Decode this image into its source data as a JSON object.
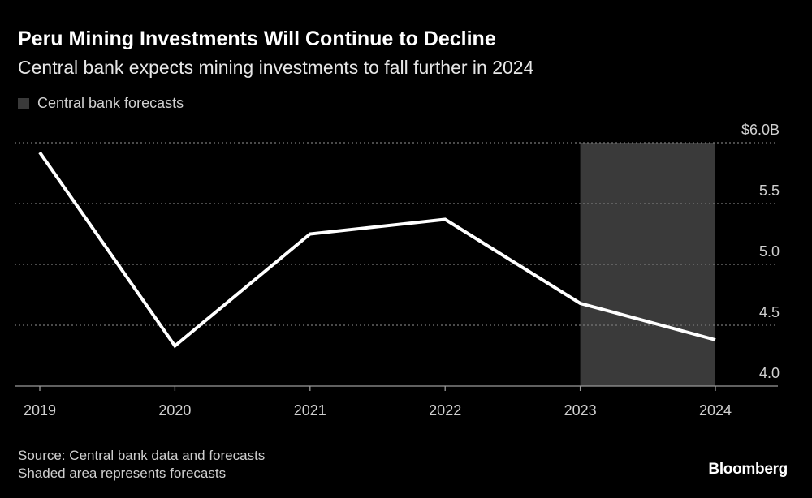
{
  "title": "Peru Mining Investments Will Continue to Decline",
  "subtitle": "Central bank expects mining investments to fall further in 2024",
  "legend": {
    "label": "Central bank forecasts",
    "color": "#3a3a3a"
  },
  "footer": {
    "source": "Source: Central bank data and forecasts",
    "note": "Shaded area represents forecasts",
    "logo": "Bloomberg"
  },
  "chart_data": {
    "type": "line",
    "categories": [
      "2019",
      "2020",
      "2021",
      "2022",
      "2023",
      "2024"
    ],
    "series": [
      {
        "values": [
          5.92,
          4.33,
          5.25,
          5.37,
          4.68,
          4.38
        ],
        "color": "#ffffff"
      }
    ],
    "ylim": [
      4.0,
      6.0
    ],
    "yticks": [
      4.0,
      4.5,
      5.0,
      5.5,
      6.0
    ],
    "ytick_labels": [
      "4.0",
      "4.5",
      "5.0",
      "5.5",
      "$6.0B"
    ],
    "y_axis_side": "right",
    "grid": true,
    "shaded_range": {
      "from": "2023",
      "to": "2024",
      "label": "Central bank forecasts"
    },
    "legend_placement": "top-left"
  }
}
